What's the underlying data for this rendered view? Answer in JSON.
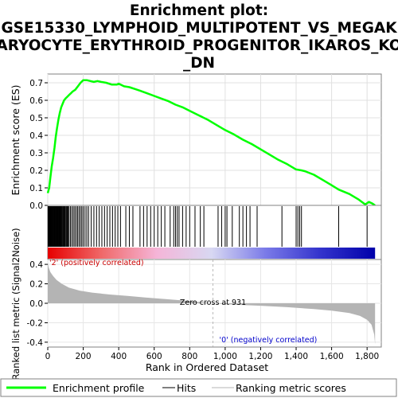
{
  "chart_data": {
    "type": "line",
    "title_lines": [
      "Enrichment plot:",
      "GSE15330_LYMPHOID_MULTIPOTENT_VS_MEGAK",
      "ARYOCYTE_ERYTHROID_PROGENITOR_IKAROS_KO",
      "_DN"
    ],
    "es_panel": {
      "ylabel": "Enrichment score (ES)",
      "ylim": [
        0,
        0.75
      ],
      "yticks": [
        "0.0",
        "0.1",
        "0.2",
        "0.3",
        "0.4",
        "0.5",
        "0.6",
        "0.7"
      ],
      "ytick_values": [
        0,
        0.1,
        0.2,
        0.3,
        0.4,
        0.5,
        0.6,
        0.7
      ],
      "line_color": "#00ff00",
      "grid": true,
      "points": [
        [
          0,
          0.07
        ],
        [
          8,
          0.1
        ],
        [
          15,
          0.16
        ],
        [
          22,
          0.22
        ],
        [
          30,
          0.27
        ],
        [
          38,
          0.33
        ],
        [
          45,
          0.39
        ],
        [
          52,
          0.44
        ],
        [
          60,
          0.49
        ],
        [
          68,
          0.53
        ],
        [
          76,
          0.56
        ],
        [
          84,
          0.58
        ],
        [
          92,
          0.6
        ],
        [
          100,
          0.61
        ],
        [
          110,
          0.62
        ],
        [
          120,
          0.63
        ],
        [
          130,
          0.64
        ],
        [
          140,
          0.65
        ],
        [
          155,
          0.66
        ],
        [
          170,
          0.68
        ],
        [
          185,
          0.7
        ],
        [
          200,
          0.715
        ],
        [
          220,
          0.715
        ],
        [
          240,
          0.71
        ],
        [
          260,
          0.705
        ],
        [
          280,
          0.71
        ],
        [
          300,
          0.705
        ],
        [
          330,
          0.7
        ],
        [
          360,
          0.69
        ],
        [
          390,
          0.69
        ],
        [
          400,
          0.695
        ],
        [
          430,
          0.68
        ],
        [
          460,
          0.675
        ],
        [
          490,
          0.665
        ],
        [
          520,
          0.655
        ],
        [
          560,
          0.64
        ],
        [
          600,
          0.625
        ],
        [
          640,
          0.61
        ],
        [
          680,
          0.595
        ],
        [
          720,
          0.575
        ],
        [
          760,
          0.56
        ],
        [
          800,
          0.54
        ],
        [
          850,
          0.515
        ],
        [
          900,
          0.49
        ],
        [
          950,
          0.46
        ],
        [
          1000,
          0.43
        ],
        [
          1050,
          0.405
        ],
        [
          1100,
          0.375
        ],
        [
          1150,
          0.35
        ],
        [
          1200,
          0.32
        ],
        [
          1250,
          0.29
        ],
        [
          1300,
          0.26
        ],
        [
          1350,
          0.235
        ],
        [
          1400,
          0.205
        ],
        [
          1430,
          0.2
        ],
        [
          1450,
          0.195
        ],
        [
          1500,
          0.175
        ],
        [
          1550,
          0.145
        ],
        [
          1600,
          0.115
        ],
        [
          1640,
          0.09
        ],
        [
          1700,
          0.065
        ],
        [
          1750,
          0.035
        ],
        [
          1790,
          0.005
        ],
        [
          1810,
          0.02
        ],
        [
          1830,
          0.01
        ],
        [
          1845,
          0.0
        ]
      ]
    },
    "hits_panel": {
      "hits_dense_ranks": [
        2,
        4,
        6,
        8,
        10,
        12,
        14,
        16,
        18,
        20,
        22,
        25,
        28,
        31,
        34,
        37,
        40,
        43,
        46,
        49,
        52,
        55,
        58,
        61,
        64,
        67,
        70,
        73,
        76,
        80,
        84,
        88,
        92,
        96,
        100,
        105,
        110,
        115,
        120,
        128,
        136,
        144,
        152,
        160,
        168,
        176,
        184,
        192,
        200,
        210,
        220,
        230,
        245,
        260,
        275,
        290,
        305,
        320,
        335,
        350,
        365,
        380,
        395,
        410,
        440,
        460,
        480,
        520,
        540,
        560,
        580,
        600,
        620,
        640,
        660,
        690,
        710,
        720,
        730,
        740,
        760,
        780,
        800,
        830,
        860,
        880,
        960,
        980,
        1000,
        1010,
        1040,
        1080,
        1100,
        1120,
        1140,
        1180,
        1320,
        1400,
        1410,
        1420,
        1430,
        1640,
        1800
      ],
      "rank_gradient_colors": [
        "#e60000",
        "#f06a6a",
        "#f5b5d8",
        "#d8d8f2",
        "#7a7ae8",
        "#3333cc",
        "#0000aa"
      ],
      "positive_label": "'2' (positively correlated)",
      "negative_label": "'0' (negatively correlated)",
      "positive_color": "#cc0000",
      "negative_color": "#0000cc"
    },
    "metric_panel": {
      "ylabel": "Ranked list metric (Signal2Noise)",
      "ylim": [
        -0.45,
        0.45
      ],
      "yticks": [
        "0.4",
        "0.2",
        "0.0",
        "-0.2",
        "-0.4"
      ],
      "ytick_values": [
        0.4,
        0.2,
        0,
        -0.2,
        -0.4
      ],
      "zero_cross_label": "Zero cross at 931",
      "zero_cross_rank": 931,
      "fill_color": "#b4b4b4",
      "profile": [
        [
          0,
          0.42
        ],
        [
          5,
          0.37
        ],
        [
          15,
          0.32
        ],
        [
          30,
          0.28
        ],
        [
          50,
          0.24
        ],
        [
          80,
          0.2
        ],
        [
          120,
          0.16
        ],
        [
          180,
          0.13
        ],
        [
          250,
          0.11
        ],
        [
          350,
          0.09
        ],
        [
          450,
          0.075
        ],
        [
          550,
          0.06
        ],
        [
          650,
          0.045
        ],
        [
          750,
          0.03
        ],
        [
          850,
          0.015
        ],
        [
          931,
          0.0
        ],
        [
          1050,
          -0.015
        ],
        [
          1200,
          -0.025
        ],
        [
          1350,
          -0.04
        ],
        [
          1500,
          -0.06
        ],
        [
          1600,
          -0.075
        ],
        [
          1700,
          -0.1
        ],
        [
          1760,
          -0.13
        ],
        [
          1800,
          -0.17
        ],
        [
          1825,
          -0.22
        ],
        [
          1840,
          -0.32
        ],
        [
          1845,
          -0.42
        ]
      ]
    },
    "x_axis": {
      "label": "Rank in Ordered Dataset",
      "xlim": [
        0,
        1880
      ],
      "ticks": [
        "0",
        "200",
        "400",
        "600",
        "800",
        "1,000",
        "1,200",
        "1,400",
        "1,600",
        "1,800"
      ],
      "tick_values": [
        0,
        200,
        400,
        600,
        800,
        1000,
        1200,
        1400,
        1600,
        1800
      ],
      "max_rank": 1845
    },
    "legend": {
      "placement": "bottom",
      "items": [
        {
          "label": "Enrichment profile",
          "color": "#00ff00",
          "style": "thick-line"
        },
        {
          "label": "Hits",
          "color": "#000000",
          "style": "thin-line"
        },
        {
          "label": "Ranking metric scores",
          "color": "#b4b4b4",
          "style": "thin-line"
        }
      ]
    }
  }
}
